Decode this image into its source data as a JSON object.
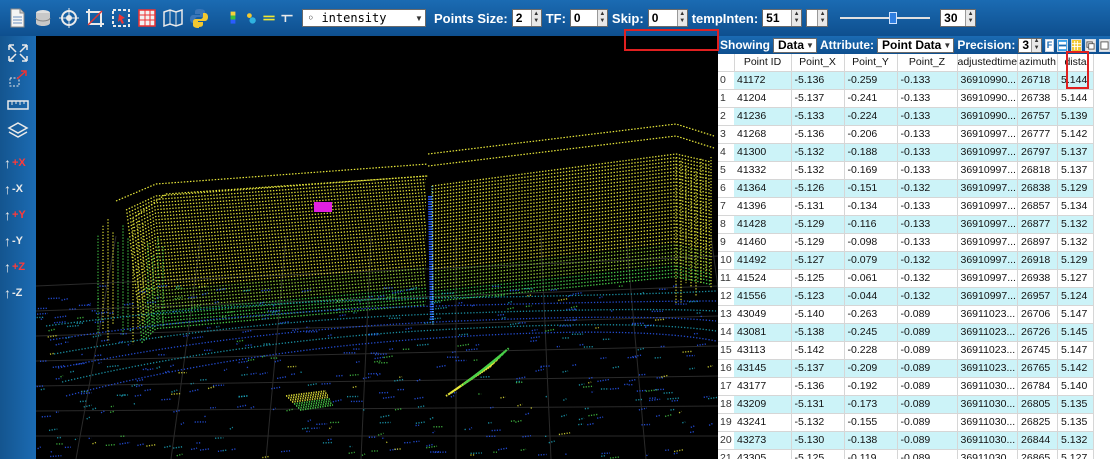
{
  "toolbar": {
    "color_mode": "◦ intensity",
    "points_size_label": "Points Size:",
    "points_size_value": "2",
    "tf_label": "TF:",
    "tf_value": "0",
    "skip_label": "Skip:",
    "skip_value": "0",
    "temp_inten_label": "tempInten:",
    "temp_inten_value": "51",
    "temp_inten_extra": "",
    "slider_level": 0.6,
    "slider_value": "30"
  },
  "left_tools": {
    "axis_buttons": [
      "+X",
      "-X",
      "+Y",
      "-Y",
      "+Z",
      "-Z"
    ]
  },
  "panel": {
    "showing_label": "Showing",
    "showing_value": "Data",
    "attribute_label": "Attribute:",
    "attribute_value": "Point Data",
    "precision_label": "Precision:",
    "precision_value": "3",
    "f_button": "F",
    "columns": [
      "Point ID",
      "Point_X",
      "Point_Y",
      "Point_Z",
      "adjustedtime",
      "azimuth",
      "dista"
    ],
    "rows": [
      [
        "41172",
        "-5.136",
        "-0.259",
        "-0.133",
        "36910990...",
        "26718",
        "5.144"
      ],
      [
        "41204",
        "-5.137",
        "-0.241",
        "-0.133",
        "36910990...",
        "26738",
        "5.144"
      ],
      [
        "41236",
        "-5.133",
        "-0.224",
        "-0.133",
        "36910990...",
        "26757",
        "5.139"
      ],
      [
        "41268",
        "-5.136",
        "-0.206",
        "-0.133",
        "36910997...",
        "26777",
        "5.142"
      ],
      [
        "41300",
        "-5.132",
        "-0.188",
        "-0.133",
        "36910997...",
        "26797",
        "5.137"
      ],
      [
        "41332",
        "-5.132",
        "-0.169",
        "-0.133",
        "36910997...",
        "26818",
        "5.137"
      ],
      [
        "41364",
        "-5.126",
        "-0.151",
        "-0.132",
        "36910997...",
        "26838",
        "5.129"
      ],
      [
        "41396",
        "-5.131",
        "-0.134",
        "-0.133",
        "36910997...",
        "26857",
        "5.134"
      ],
      [
        "41428",
        "-5.129",
        "-0.116",
        "-0.133",
        "36910997...",
        "26877",
        "5.132"
      ],
      [
        "41460",
        "-5.129",
        "-0.098",
        "-0.133",
        "36910997...",
        "26897",
        "5.132"
      ],
      [
        "41492",
        "-5.127",
        "-0.079",
        "-0.132",
        "36910997...",
        "26918",
        "5.129"
      ],
      [
        "41524",
        "-5.125",
        "-0.061",
        "-0.132",
        "36910997...",
        "26938",
        "5.127"
      ],
      [
        "41556",
        "-5.123",
        "-0.044",
        "-0.132",
        "36910997...",
        "26957",
        "5.124"
      ],
      [
        "43049",
        "-5.140",
        "-0.263",
        "-0.089",
        "36911023...",
        "26706",
        "5.147"
      ],
      [
        "43081",
        "-5.138",
        "-0.245",
        "-0.089",
        "36911023...",
        "26726",
        "5.145"
      ],
      [
        "43113",
        "-5.142",
        "-0.228",
        "-0.089",
        "36911023...",
        "26745",
        "5.147"
      ],
      [
        "43145",
        "-5.137",
        "-0.209",
        "-0.089",
        "36911023...",
        "26765",
        "5.142"
      ],
      [
        "43177",
        "-5.136",
        "-0.192",
        "-0.089",
        "36911030...",
        "26784",
        "5.140"
      ],
      [
        "43209",
        "-5.131",
        "-0.173",
        "-0.089",
        "36911030...",
        "26805",
        "5.135"
      ],
      [
        "43241",
        "-5.132",
        "-0.155",
        "-0.089",
        "36911030...",
        "26825",
        "5.135"
      ],
      [
        "43273",
        "-5.130",
        "-0.138",
        "-0.089",
        "36911030...",
        "26844",
        "5.132"
      ],
      [
        "43305",
        "-5.125",
        "-0.119",
        "-0.089",
        "36911030...",
        "26865",
        "5.127"
      ]
    ]
  },
  "colors": {
    "toolbar_blue": "#1b6bb3",
    "row_cyan": "#ccf3f8",
    "highlight_red": "#e02020",
    "point_yellow": "#e8e83a",
    "point_green": "#4ad24a",
    "point_blue": "#2a5cff",
    "selection_magenta": "#e020e0"
  }
}
